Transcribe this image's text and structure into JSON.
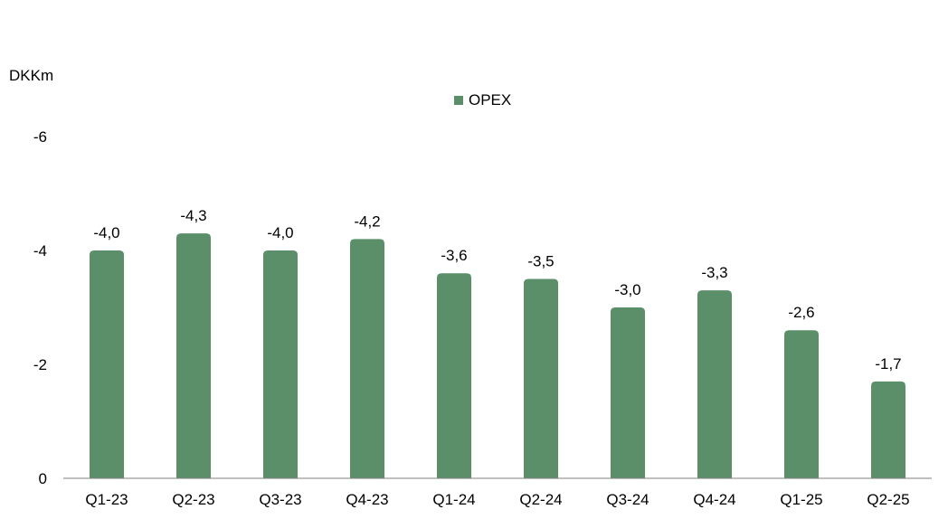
{
  "chart_data": {
    "type": "bar",
    "ylabel": "DKKm",
    "categories": [
      "Q1-23",
      "Q2-23",
      "Q3-23",
      "Q4-23",
      "Q1-24",
      "Q2-24",
      "Q3-24",
      "Q4-24",
      "Q1-25",
      "Q2-25"
    ],
    "series": [
      {
        "name": "OPEX",
        "color": "#5a8f69",
        "values": [
          -4.0,
          -4.3,
          -4.0,
          -4.2,
          -3.6,
          -3.5,
          -3.0,
          -3.3,
          -2.6,
          -1.7
        ],
        "labels": [
          "-4,0",
          "-4,3",
          "-4,0",
          "-4,2",
          "-3,6",
          "-3,5",
          "-3,0",
          "-3,3",
          "-2,6",
          "-1,7"
        ]
      }
    ],
    "yticks": [
      {
        "value": 0,
        "label": "0"
      },
      {
        "value": -2,
        "label": "-2"
      },
      {
        "value": -4,
        "label": "-4"
      },
      {
        "value": -6,
        "label": "-6"
      }
    ],
    "ylim": [
      0,
      -6
    ],
    "y_reversed": true,
    "grid": false,
    "legend_position": "top-center"
  }
}
